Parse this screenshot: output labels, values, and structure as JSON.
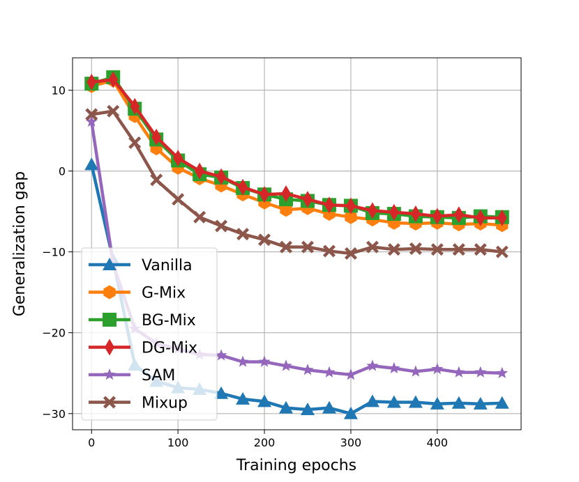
{
  "chart_data": {
    "type": "line",
    "title": "",
    "xlabel": "Training epochs",
    "ylabel": "Generalization gap",
    "xlim": [
      -22,
      497
    ],
    "ylim": [
      -32,
      14
    ],
    "xticks": [
      0,
      100,
      200,
      300,
      400
    ],
    "yticks": [
      10,
      0,
      -10,
      -20,
      -30
    ],
    "ytick_labels": [
      "10",
      "0",
      "−10",
      "−20",
      "−30"
    ],
    "grid": true,
    "legend_position": "lower-left",
    "x": [
      0,
      25,
      50,
      75,
      100,
      125,
      150,
      175,
      200,
      225,
      250,
      275,
      300,
      325,
      350,
      375,
      400,
      425,
      450,
      475
    ],
    "series": [
      {
        "name": "Vanilla",
        "color": "#1f77b4",
        "marker": "triangle-up",
        "values": [
          0.8,
          -11.0,
          -24.0,
          -26.0,
          -26.8,
          -27.0,
          -27.5,
          -28.2,
          -28.5,
          -29.3,
          -29.5,
          -29.3,
          -30.0,
          -28.5,
          -28.6,
          -28.6,
          -28.8,
          -28.7,
          -28.8,
          -28.7
        ]
      },
      {
        "name": "G-Mix",
        "color": "#ff7f0e",
        "marker": "hexagon",
        "values": [
          10.5,
          11.2,
          6.8,
          2.8,
          0.4,
          -0.9,
          -1.8,
          -2.9,
          -3.9,
          -4.8,
          -4.6,
          -5.3,
          -5.7,
          -6.0,
          -6.4,
          -6.5,
          -6.4,
          -6.6,
          -6.5,
          -6.7
        ]
      },
      {
        "name": "BG-Mix",
        "color": "#2ca02c",
        "marker": "square",
        "values": [
          10.8,
          11.6,
          7.7,
          3.9,
          1.3,
          -0.4,
          -0.8,
          -2.1,
          -2.9,
          -3.5,
          -3.7,
          -4.2,
          -4.3,
          -5.2,
          -5.3,
          -5.6,
          -5.7,
          -5.8,
          -5.6,
          -5.7
        ]
      },
      {
        "name": "DG-Mix",
        "color": "#d62728",
        "marker": "diamond",
        "values": [
          11.0,
          11.3,
          8.0,
          4.2,
          1.6,
          0.0,
          -0.7,
          -2.0,
          -2.9,
          -2.8,
          -3.5,
          -4.2,
          -4.3,
          -4.9,
          -5.1,
          -5.3,
          -5.6,
          -5.4,
          -5.8,
          -5.8
        ]
      },
      {
        "name": "SAM",
        "color": "#9467bd",
        "marker": "star",
        "values": [
          6.1,
          -11.5,
          -19.5,
          -21.3,
          -22.0,
          -22.7,
          -22.8,
          -23.6,
          -23.6,
          -24.1,
          -24.6,
          -24.9,
          -25.2,
          -24.1,
          -24.4,
          -24.8,
          -24.5,
          -24.9,
          -24.9,
          -25.0
        ]
      },
      {
        "name": "Mixup",
        "color": "#8c564b",
        "marker": "x-cross",
        "values": [
          7.0,
          7.4,
          3.5,
          -1.1,
          -3.5,
          -5.7,
          -6.8,
          -7.8,
          -8.5,
          -9.4,
          -9.4,
          -9.9,
          -10.2,
          -9.4,
          -9.7,
          -9.6,
          -9.7,
          -9.7,
          -9.7,
          -10.0
        ]
      }
    ]
  }
}
